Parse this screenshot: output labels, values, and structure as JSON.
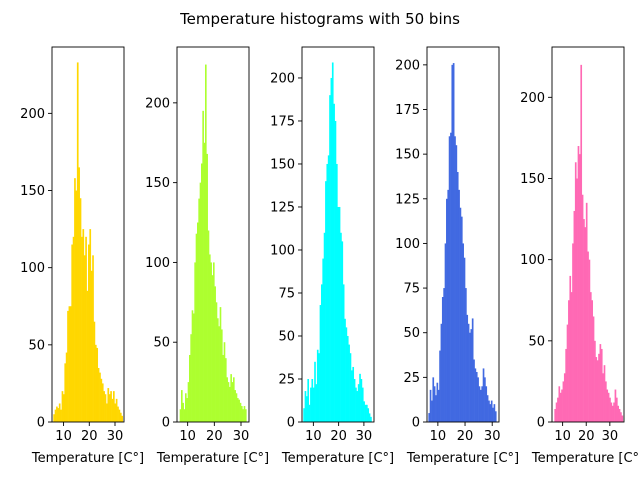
{
  "figure": {
    "suptitle": "Temperature histograms with 50 bins"
  },
  "chart_data": [
    {
      "type": "bar",
      "xlabel": "Temperature [C°]",
      "color": "#ffd700",
      "xlim": [
        5.5,
        33.5
      ],
      "ylim": [
        0,
        243
      ],
      "xticks": [
        10,
        20,
        30
      ],
      "yticks": [
        0,
        50,
        100,
        150,
        200
      ],
      "bin_start": 6,
      "bin_width": 0.54,
      "counts": [
        5,
        8,
        10,
        9,
        12,
        8,
        20,
        18,
        38,
        45,
        72,
        75,
        75,
        115,
        120,
        158,
        150,
        233,
        165,
        145,
        120,
        125,
        108,
        120,
        85,
        115,
        125,
        98,
        108,
        65,
        50,
        48,
        35,
        32,
        28,
        25,
        20,
        18,
        12,
        22,
        18,
        20,
        15,
        20,
        12,
        15,
        10,
        8,
        6,
        4
      ]
    },
    {
      "type": "bar",
      "xlabel": "Temperature [C°]",
      "color": "#adff2f",
      "xlim": [
        6,
        33
      ],
      "ylim": [
        0,
        235
      ],
      "xticks": [
        10,
        20,
        30
      ],
      "yticks": [
        0,
        50,
        100,
        150,
        200
      ],
      "bin_start": 7,
      "bin_width": 0.5,
      "counts": [
        8,
        20,
        12,
        8,
        18,
        15,
        25,
        42,
        55,
        70,
        68,
        100,
        118,
        125,
        140,
        150,
        162,
        195,
        175,
        224,
        168,
        120,
        105,
        100,
        92,
        100,
        85,
        75,
        65,
        60,
        72,
        58,
        42,
        50,
        40,
        28,
        25,
        22,
        30,
        25,
        28,
        20,
        18,
        15,
        14,
        12,
        10,
        8,
        10,
        8
      ]
    },
    {
      "type": "bar",
      "xlabel": "Temperature [C°]",
      "color": "#00ffff",
      "xlim": [
        5.5,
        34
      ],
      "ylim": [
        0,
        218
      ],
      "xticks": [
        10,
        20,
        30
      ],
      "yticks": [
        0,
        25,
        50,
        75,
        100,
        125,
        150,
        175,
        200
      ],
      "bin_start": 6,
      "bin_width": 0.54,
      "counts": [
        8,
        18,
        15,
        25,
        10,
        20,
        25,
        20,
        35,
        22,
        42,
        40,
        68,
        80,
        95,
        110,
        140,
        150,
        155,
        190,
        200,
        209,
        185,
        175,
        150,
        125,
        125,
        110,
        105,
        80,
        60,
        55,
        50,
        45,
        40,
        30,
        32,
        25,
        20,
        18,
        22,
        28,
        25,
        20,
        12,
        10,
        10,
        8,
        5,
        3
      ]
    },
    {
      "type": "bar",
      "xlabel": "Temperature [C°]",
      "color": "#4169e1",
      "xlim": [
        6,
        32.5
      ],
      "ylim": [
        0,
        210
      ],
      "xticks": [
        10,
        20,
        30
      ],
      "yticks": [
        0,
        25,
        50,
        75,
        100,
        125,
        150,
        175,
        200
      ],
      "bin_start": 6.5,
      "bin_width": 0.5,
      "counts": [
        5,
        18,
        12,
        25,
        20,
        15,
        22,
        18,
        40,
        55,
        70,
        75,
        100,
        125,
        130,
        160,
        162,
        200,
        201,
        160,
        155,
        140,
        130,
        120,
        115,
        100,
        92,
        75,
        60,
        55,
        50,
        52,
        58,
        35,
        30,
        28,
        25,
        20,
        18,
        20,
        30,
        25,
        20,
        15,
        12,
        10,
        12,
        8,
        10,
        6
      ]
    },
    {
      "type": "bar",
      "xlabel": "Temperature [C°]",
      "color": "#ff69b4",
      "xlim": [
        5.5,
        36
      ],
      "ylim": [
        0,
        231
      ],
      "xticks": [
        10,
        20,
        30
      ],
      "yticks": [
        0,
        50,
        100,
        150,
        200
      ],
      "bin_start": 6.5,
      "bin_width": 0.58,
      "counts": [
        8,
        12,
        15,
        22,
        18,
        20,
        25,
        30,
        45,
        60,
        75,
        90,
        80,
        110,
        130,
        160,
        150,
        170,
        165,
        220,
        140,
        125,
        120,
        135,
        105,
        100,
        80,
        75,
        65,
        50,
        40,
        38,
        42,
        48,
        45,
        30,
        35,
        25,
        20,
        18,
        15,
        12,
        10,
        12,
        20,
        15,
        10,
        8,
        6,
        4
      ]
    }
  ]
}
